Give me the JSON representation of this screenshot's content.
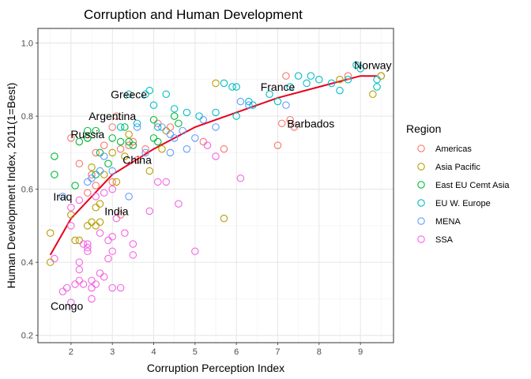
{
  "chart_data": {
    "type": "scatter",
    "title": "Corruption and Human Development",
    "xlabel": "Corruption Perception Index",
    "ylabel": "Human Development Index, 2011(1=Best)",
    "xlim": [
      1.2,
      9.8
    ],
    "ylim": [
      0.18,
      1.04
    ],
    "x_ticks": [
      "2",
      "3",
      "4",
      "5",
      "6",
      "7",
      "8",
      "9"
    ],
    "y_ticks": [
      "0.2",
      "0.4",
      "0.6",
      "0.8",
      "1.0"
    ],
    "grid": true,
    "legend_position": "right",
    "legend_title": "Region",
    "colors": {
      "Americas": "#F8766D",
      "Asia Pacific": "#B79F00",
      "East EU Cemt Asia": "#00BA38",
      "EU W. Europe": "#00BFC4",
      "MENA": "#619CFF",
      "SSA": "#F564E3",
      "trend": "#E8001C"
    },
    "series": [
      {
        "name": "Americas",
        "points": [
          [
            2.0,
            0.74
          ],
          [
            2.2,
            0.67
          ],
          [
            2.5,
            0.64
          ],
          [
            2.6,
            0.7
          ],
          [
            2.8,
            0.72
          ],
          [
            3.0,
            0.77
          ],
          [
            3.1,
            0.8
          ],
          [
            3.2,
            0.71
          ],
          [
            3.4,
            0.72
          ],
          [
            3.6,
            0.68
          ],
          [
            3.8,
            0.71
          ],
          [
            4.1,
            0.78
          ],
          [
            4.4,
            0.77
          ],
          [
            5.2,
            0.73
          ],
          [
            5.7,
            0.71
          ],
          [
            7.0,
            0.72
          ],
          [
            7.1,
            0.78
          ],
          [
            7.2,
            0.91
          ],
          [
            7.3,
            0.79
          ],
          [
            7.4,
            0.77
          ],
          [
            8.7,
            0.91
          ],
          [
            9.5,
            0.91
          ],
          [
            2.4,
            0.59
          ],
          [
            2.6,
            0.61
          ],
          [
            3.0,
            0.62
          ],
          [
            3.5,
            0.73
          ],
          [
            3.2,
            0.53
          ]
        ]
      },
      {
        "name": "Asia Pacific",
        "points": [
          [
            1.5,
            0.48
          ],
          [
            1.5,
            0.4
          ],
          [
            2.0,
            0.53
          ],
          [
            2.1,
            0.46
          ],
          [
            2.2,
            0.46
          ],
          [
            2.4,
            0.5
          ],
          [
            2.5,
            0.51
          ],
          [
            2.6,
            0.5
          ],
          [
            2.7,
            0.51
          ],
          [
            2.6,
            0.55
          ],
          [
            2.7,
            0.56
          ],
          [
            2.5,
            0.66
          ],
          [
            2.8,
            0.64
          ],
          [
            3.0,
            0.7
          ],
          [
            3.1,
            0.62
          ],
          [
            3.3,
            0.69
          ],
          [
            3.4,
            0.75
          ],
          [
            3.9,
            0.65
          ],
          [
            4.2,
            0.71
          ],
          [
            4.3,
            0.76
          ],
          [
            5.7,
            0.52
          ],
          [
            5.5,
            0.89
          ],
          [
            8.5,
            0.9
          ],
          [
            9.3,
            0.86
          ],
          [
            9.5,
            0.91
          ],
          [
            2.4,
            0.74
          ]
        ]
      },
      {
        "name": "East EU Cemt Asia",
        "points": [
          [
            1.6,
            0.69
          ],
          [
            1.6,
            0.64
          ],
          [
            2.1,
            0.61
          ],
          [
            2.2,
            0.73
          ],
          [
            2.4,
            0.76
          ],
          [
            2.4,
            0.74
          ],
          [
            2.6,
            0.76
          ],
          [
            2.7,
            0.7
          ],
          [
            2.9,
            0.67
          ],
          [
            3.0,
            0.74
          ],
          [
            3.2,
            0.73
          ],
          [
            3.3,
            0.77
          ],
          [
            3.4,
            0.73
          ],
          [
            3.5,
            0.72
          ],
          [
            4.0,
            0.79
          ],
          [
            4.0,
            0.74
          ],
          [
            4.1,
            0.73
          ],
          [
            4.5,
            0.8
          ],
          [
            4.6,
            0.78
          ],
          [
            2.6,
            0.64
          ]
        ]
      },
      {
        "name": "EU W. Europe",
        "points": [
          [
            3.2,
            0.77
          ],
          [
            3.4,
            0.86
          ],
          [
            3.8,
            0.86
          ],
          [
            3.9,
            0.87
          ],
          [
            4.0,
            0.83
          ],
          [
            4.1,
            0.77
          ],
          [
            4.3,
            0.86
          ],
          [
            4.5,
            0.82
          ],
          [
            4.8,
            0.81
          ],
          [
            5.5,
            0.81
          ],
          [
            5.7,
            0.89
          ],
          [
            5.9,
            0.88
          ],
          [
            6.0,
            0.8
          ],
          [
            6.3,
            0.84
          ],
          [
            6.4,
            0.83
          ],
          [
            6.8,
            0.86
          ],
          [
            7.0,
            0.84
          ],
          [
            7.3,
            0.88
          ],
          [
            7.5,
            0.91
          ],
          [
            7.7,
            0.89
          ],
          [
            7.8,
            0.91
          ],
          [
            8.0,
            0.9
          ],
          [
            8.3,
            0.89
          ],
          [
            8.5,
            0.87
          ],
          [
            8.7,
            0.9
          ],
          [
            8.9,
            0.94
          ],
          [
            9.0,
            0.93
          ],
          [
            9.4,
            0.88
          ],
          [
            9.4,
            0.9
          ],
          [
            5.1,
            0.8
          ],
          [
            6.0,
            0.88
          ],
          [
            3.6,
            0.78
          ]
        ]
      },
      {
        "name": "MENA",
        "points": [
          [
            1.8,
            0.58
          ],
          [
            2.4,
            0.62
          ],
          [
            2.5,
            0.63
          ],
          [
            2.7,
            0.65
          ],
          [
            2.8,
            0.69
          ],
          [
            3.0,
            0.65
          ],
          [
            3.4,
            0.58
          ],
          [
            3.6,
            0.77
          ],
          [
            3.8,
            0.7
          ],
          [
            4.2,
            0.77
          ],
          [
            4.4,
            0.7
          ],
          [
            4.5,
            0.74
          ],
          [
            4.7,
            0.76
          ],
          [
            4.8,
            0.71
          ],
          [
            5.0,
            0.74
          ],
          [
            5.2,
            0.79
          ],
          [
            5.5,
            0.77
          ],
          [
            6.1,
            0.84
          ],
          [
            6.3,
            0.83
          ],
          [
            7.2,
            0.83
          ],
          [
            4.4,
            0.75
          ]
        ]
      },
      {
        "name": "SSA",
        "points": [
          [
            1.6,
            0.41
          ],
          [
            1.8,
            0.32
          ],
          [
            1.9,
            0.33
          ],
          [
            2.0,
            0.29
          ],
          [
            2.0,
            0.5
          ],
          [
            2.1,
            0.34
          ],
          [
            2.2,
            0.35
          ],
          [
            2.2,
            0.4
          ],
          [
            2.2,
            0.38
          ],
          [
            2.3,
            0.45
          ],
          [
            2.3,
            0.34
          ],
          [
            2.4,
            0.43
          ],
          [
            2.4,
            0.45
          ],
          [
            2.5,
            0.33
          ],
          [
            2.5,
            0.3
          ],
          [
            2.6,
            0.34
          ],
          [
            2.7,
            0.37
          ],
          [
            2.7,
            0.48
          ],
          [
            2.8,
            0.36
          ],
          [
            2.9,
            0.46
          ],
          [
            3.0,
            0.43
          ],
          [
            3.0,
            0.33
          ],
          [
            3.0,
            0.47
          ],
          [
            3.1,
            0.52
          ],
          [
            3.2,
            0.33
          ],
          [
            3.3,
            0.48
          ],
          [
            3.5,
            0.45
          ],
          [
            3.5,
            0.42
          ],
          [
            3.9,
            0.54
          ],
          [
            4.1,
            0.62
          ],
          [
            4.3,
            0.62
          ],
          [
            4.6,
            0.56
          ],
          [
            5.0,
            0.43
          ],
          [
            5.5,
            0.69
          ],
          [
            6.1,
            0.63
          ],
          [
            2.0,
            0.55
          ],
          [
            2.2,
            0.57
          ],
          [
            2.4,
            0.44
          ],
          [
            2.6,
            0.58
          ],
          [
            2.8,
            0.59
          ],
          [
            2.9,
            0.41
          ],
          [
            3.0,
            0.6
          ],
          [
            5.3,
            0.72
          ],
          [
            2.5,
            0.35
          ]
        ]
      }
    ],
    "trend": {
      "x": [
        1.5,
        2.0,
        3.0,
        4.0,
        5.0,
        6.0,
        7.0,
        8.0,
        9.0,
        9.4
      ],
      "y": [
        0.42,
        0.52,
        0.64,
        0.71,
        0.77,
        0.81,
        0.85,
        0.88,
        0.91,
        0.91
      ]
    },
    "annotations": [
      {
        "label": "Norway",
        "x": 9.3,
        "y": 0.94
      },
      {
        "label": "France",
        "x": 7.0,
        "y": 0.88
      },
      {
        "label": "Greece",
        "x": 3.4,
        "y": 0.86
      },
      {
        "label": "Barbados",
        "x": 7.8,
        "y": 0.78
      },
      {
        "label": "Argentina",
        "x": 3.0,
        "y": 0.8
      },
      {
        "label": "Russia",
        "x": 2.4,
        "y": 0.75
      },
      {
        "label": "China",
        "x": 3.6,
        "y": 0.68
      },
      {
        "label": "Iraq",
        "x": 1.8,
        "y": 0.58
      },
      {
        "label": "India",
        "x": 3.1,
        "y": 0.54
      },
      {
        "label": "Congo",
        "x": 1.9,
        "y": 0.28
      }
    ]
  }
}
